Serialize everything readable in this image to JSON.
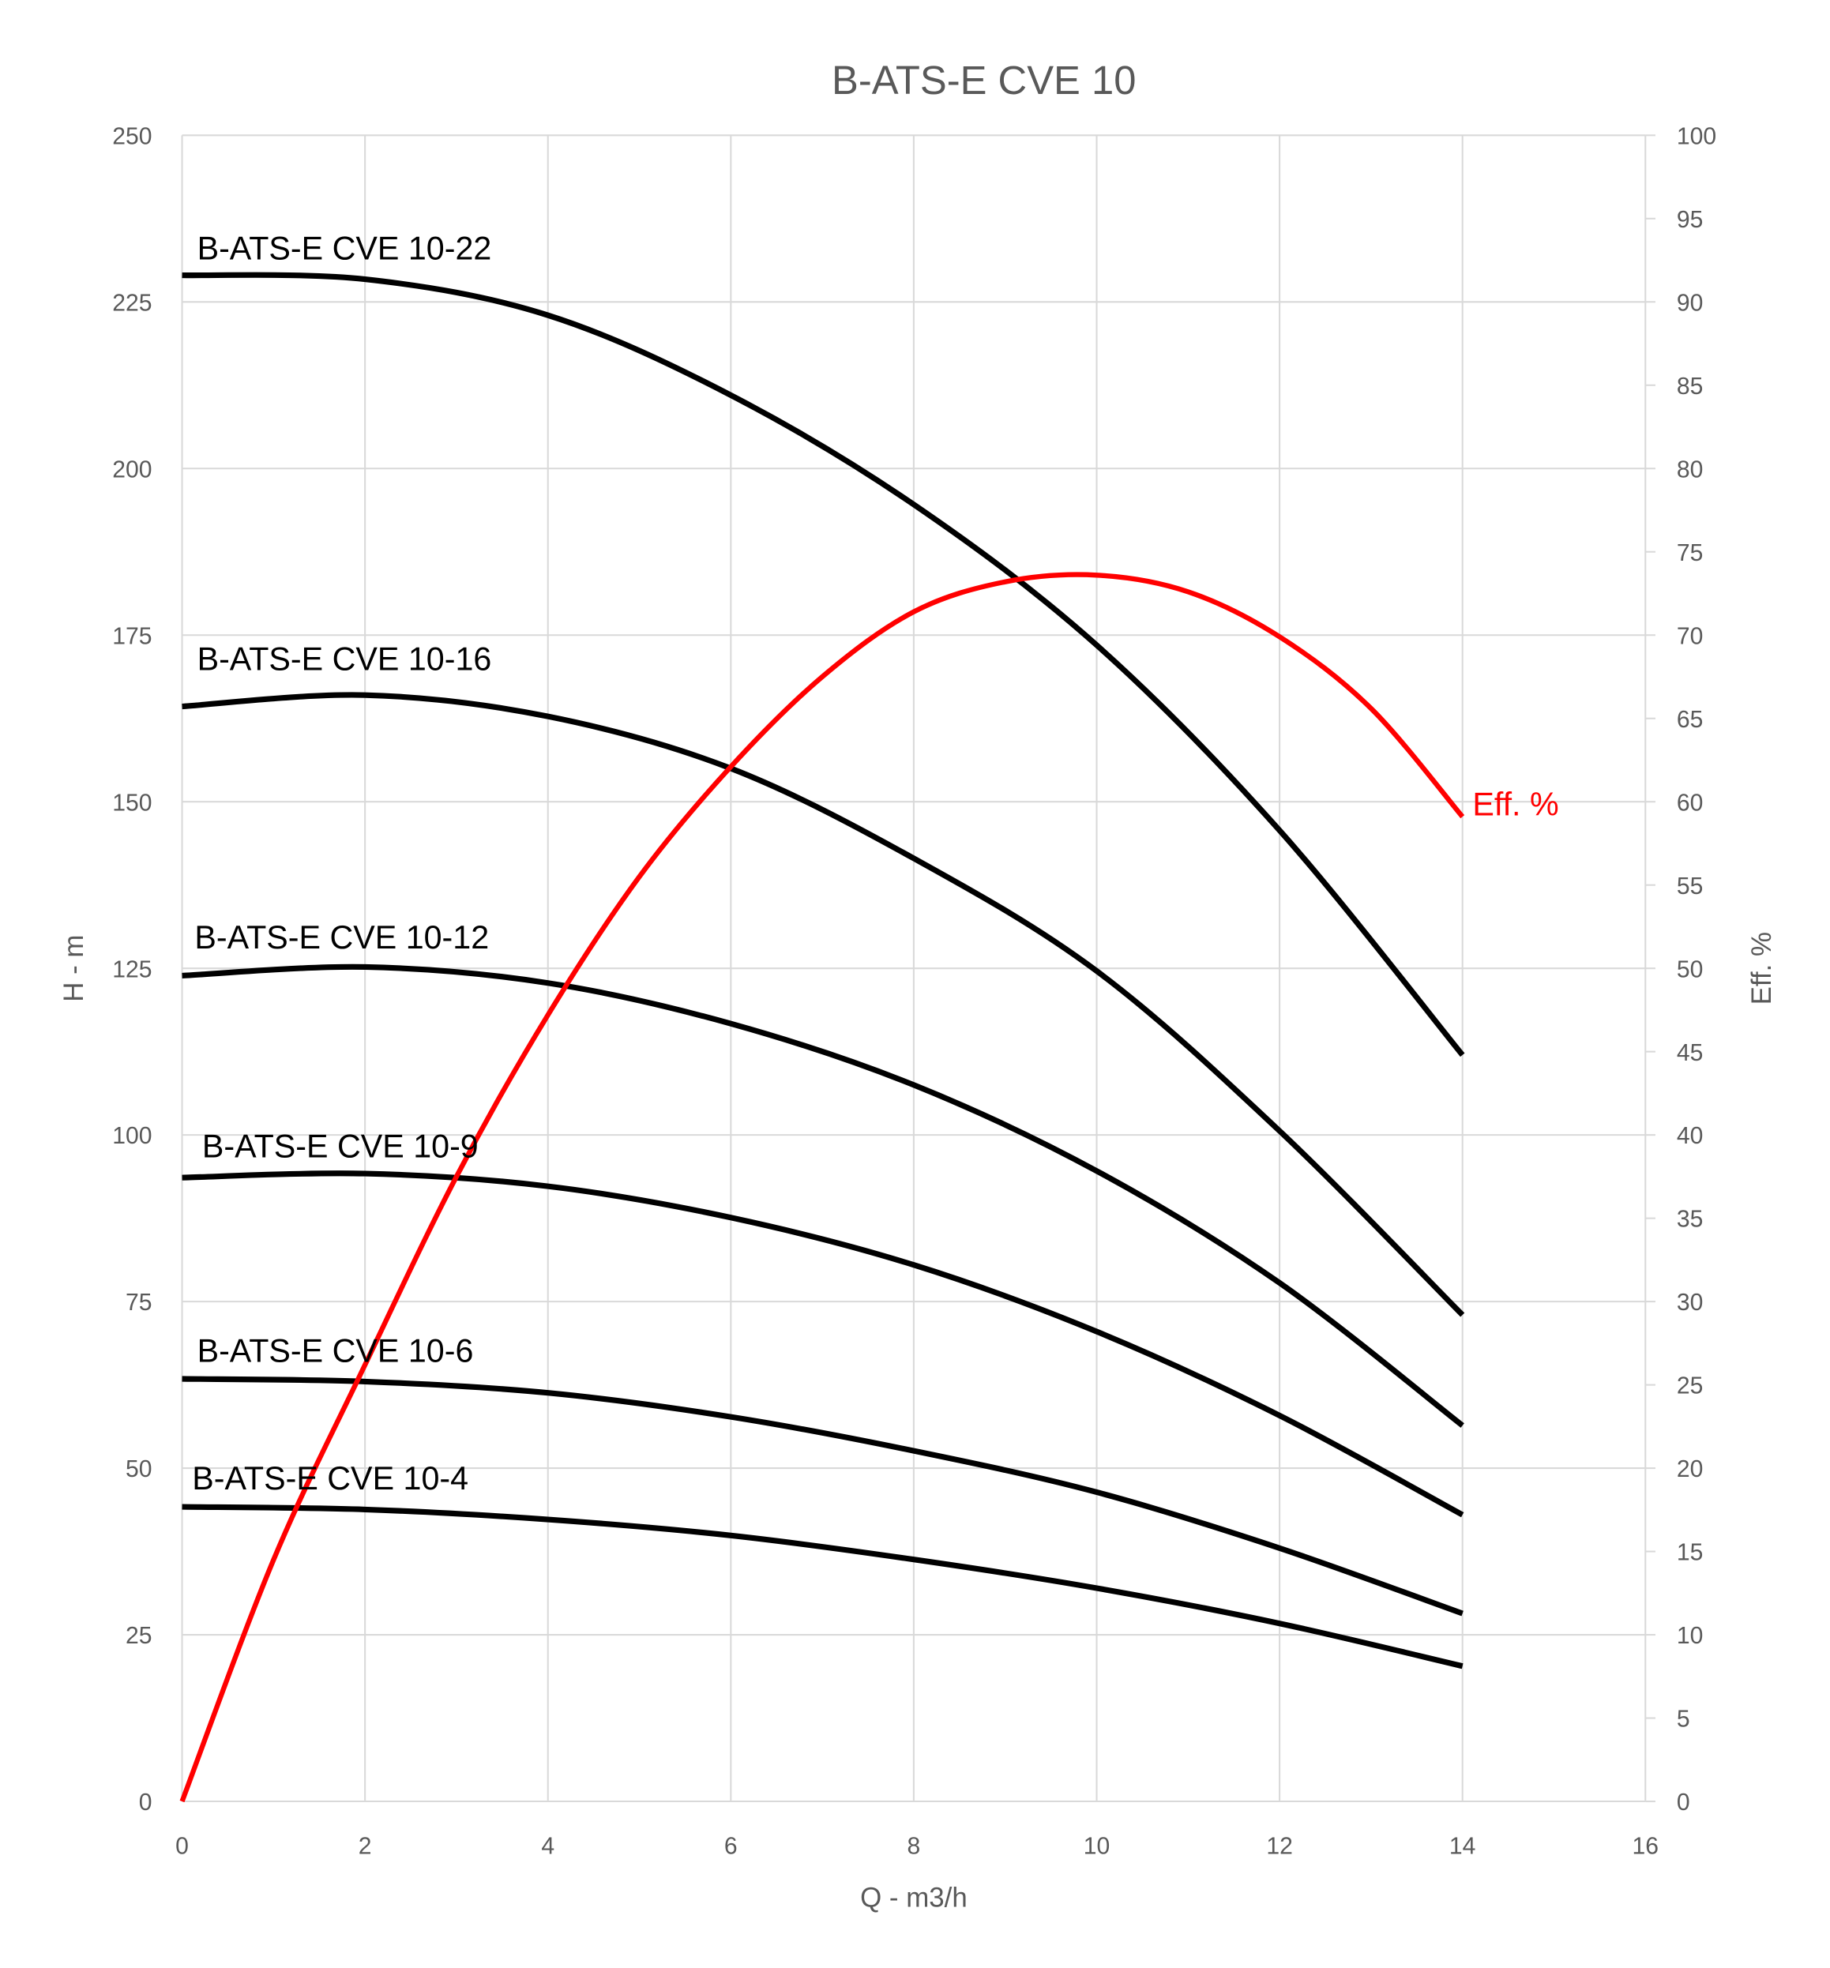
{
  "chart_data": {
    "type": "line",
    "title": "B-ATS-E CVE 10",
    "xlabel": "Q - m3/h",
    "ylabel": "H - m",
    "y2label": "Eff. %",
    "xlim": [
      0,
      16
    ],
    "ylim": [
      0,
      250
    ],
    "y2lim": [
      0,
      100
    ],
    "xticks": [
      0,
      2,
      4,
      6,
      8,
      10,
      12,
      14,
      16
    ],
    "yticks": [
      0,
      25,
      50,
      75,
      100,
      125,
      150,
      175,
      200,
      225,
      250
    ],
    "y2ticks": [
      0,
      5,
      10,
      15,
      20,
      25,
      30,
      35,
      40,
      45,
      50,
      55,
      60,
      65,
      70,
      75,
      80,
      85,
      90,
      95,
      100
    ],
    "grid": true,
    "x": [
      0,
      2,
      4,
      6,
      8,
      10,
      12,
      14
    ],
    "series": [
      {
        "name": "B-ATS-E CVE 10-22",
        "color": "#000000",
        "axis": "left",
        "values": [
          229,
          228.4,
          223,
          211,
          194.6,
          173.5,
          145.7,
          112
        ]
      },
      {
        "name": "B-ATS-E CVE 10-16",
        "color": "#000000",
        "axis": "left",
        "values": [
          164.3,
          166,
          162.8,
          155,
          141.5,
          124.6,
          100.6,
          73
        ]
      },
      {
        "name": "B-ATS-E CVE 10-12",
        "color": "#000000",
        "axis": "left",
        "values": [
          123.9,
          125.2,
          122.8,
          116.7,
          107.5,
          94.6,
          77.8,
          56.4
        ]
      },
      {
        "name": "B-ATS-E CVE 10-9",
        "color": "#000000",
        "axis": "left",
        "values": [
          93.6,
          94.2,
          92.3,
          87.6,
          80.5,
          70.5,
          57.9,
          43
        ]
      },
      {
        "name": "B-ATS-E CVE 10-6",
        "color": "#000000",
        "axis": "left",
        "values": [
          63.4,
          63,
          61.3,
          57.7,
          52.6,
          46.4,
          38,
          28.2
        ]
      },
      {
        "name": "B-ATS-E CVE 10-4",
        "color": "#000000",
        "axis": "left",
        "values": [
          44.2,
          43.8,
          42.3,
          39.9,
          36.3,
          32,
          26.7,
          20.3
        ]
      }
    ],
    "efficiency": {
      "name": "Eff. %",
      "color": "#ff0000",
      "axis": "right",
      "x": [
        0,
        1,
        2,
        3,
        4,
        5,
        6,
        7,
        8,
        9,
        10,
        11,
        12,
        13,
        14
      ],
      "values": [
        0,
        14.5,
        26.2,
        37.5,
        47.2,
        55.5,
        62.1,
        67.5,
        71.4,
        73.2,
        73.6,
        72.6,
        69.9,
        65.6,
        59.1
      ]
    }
  }
}
